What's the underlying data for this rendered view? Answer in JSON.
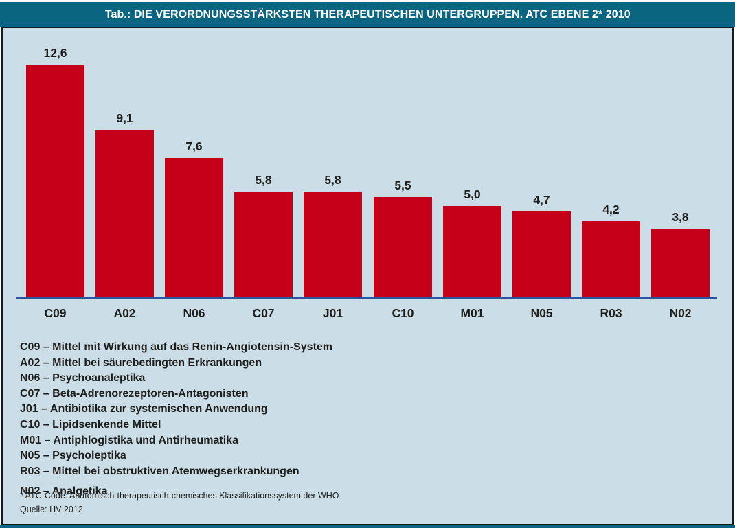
{
  "header": {
    "title": "Tab.: DIE VERORDNUNGSSTÄRKSTEN THERAPEUTISCHEN UNTERGRUPPEN. ATC EBENE 2* 2010"
  },
  "chart_data": {
    "type": "bar",
    "title": "Tab.: DIE VERORDNUNGSSTÄRKSTEN THERAPEUTISCHEN UNTERGRUPPEN. ATC EBENE 2* 2010",
    "categories": [
      "C09",
      "A02",
      "N06",
      "C07",
      "J01",
      "C10",
      "M01",
      "N05",
      "R03",
      "N02"
    ],
    "values": [
      12.6,
      9.1,
      7.6,
      5.8,
      5.8,
      5.5,
      5.0,
      4.7,
      4.2,
      3.8
    ],
    "value_labels": [
      "12,6",
      "9,1",
      "7,6",
      "5,8",
      "5,8",
      "5,5",
      "5,0",
      "4,7",
      "4,2",
      "3,8"
    ],
    "xlabel": "",
    "ylabel": "",
    "ylim": [
      0,
      14
    ],
    "grid": false,
    "data_labels": true,
    "legend_position": "below",
    "bar_color": "#c60018",
    "axis_line_color": "#2b55a0"
  },
  "legend": {
    "items": [
      "C09 – Mittel mit Wirkung auf das Renin-Angiotensin-System",
      "A02 – Mittel bei säurebedingten Erkrankungen",
      "N06 – Psychoanaleptika",
      "C07 – Beta-Adrenorezeptoren-Antagonisten",
      "J01 – Antibiotika zur systemischen Anwendung",
      "C10 – Lipidsenkende Mittel",
      "M01 – Antiphlogistika und Antirheumatika",
      "N05 – Psycholeptika",
      "R03 – Mittel bei obstruktiven Atemwegserkrankungen",
      "N02 – Analgetika"
    ]
  },
  "footnotes": {
    "atc_note": "* ATC-Code: Anatomisch-therapeutisch-chemisches Klassifikationssystem der WHO",
    "source": "Quelle: HV 2012"
  },
  "colors": {
    "header_bg": "#096580",
    "panel_bg": "#cbdde6",
    "panel_border": "#111c22",
    "bar": "#c60018",
    "axis_line": "#2b55a0",
    "text": "#1d1d1b",
    "title_text": "#ffffff"
  }
}
